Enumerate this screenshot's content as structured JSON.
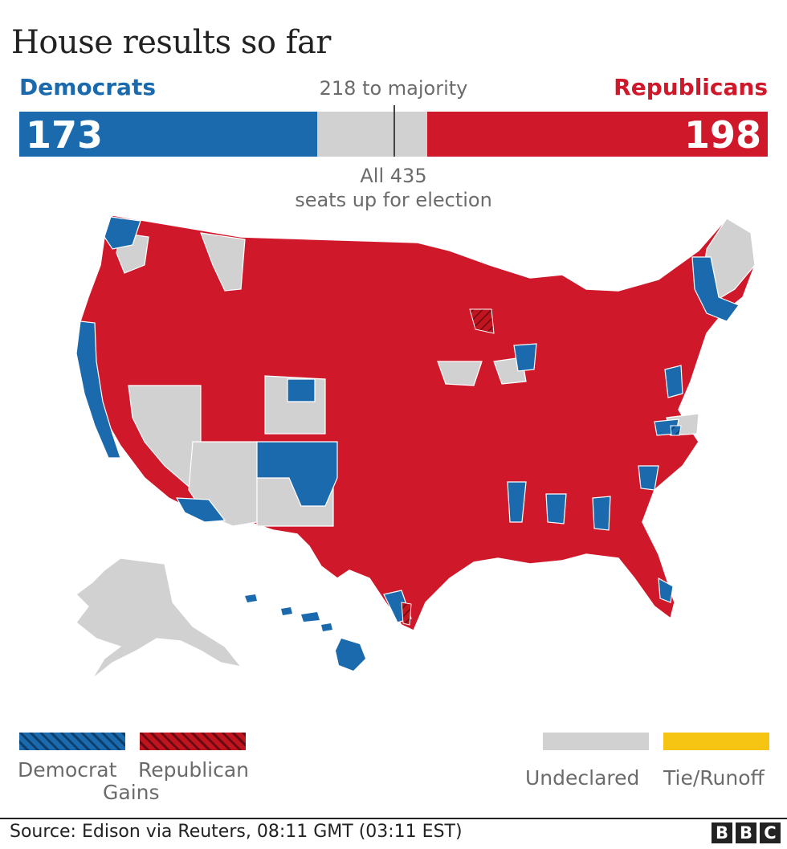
{
  "title": "House results so far",
  "democrats": {
    "label": "Democrats",
    "seats": "173",
    "color": "#1a6aad"
  },
  "republicans": {
    "label": "Republicans",
    "seats": "198",
    "color": "#d0182b"
  },
  "majority": {
    "label": "218 to majority",
    "value": 218
  },
  "total_seats": 435,
  "seats_note": {
    "line1": "All 435",
    "line2": "seats up for election"
  },
  "legend": {
    "dem_gain_line1": "Democrat",
    "rep_gain_line1": "Republican",
    "gains": "Gains",
    "undeclared": "Undeclared",
    "tie_runoff": "Tie/Runoff",
    "colors": {
      "dem_gain": "#1a6aad",
      "rep_gain": "#a4121d",
      "undeclared": "#d1d1d1",
      "tie_runoff": "#f6c413"
    }
  },
  "map_colors": {
    "democrat": "#1a6aad",
    "republican": "#d0182b",
    "undeclared": "#d1d1d1"
  },
  "source": "Source: Edison via Reuters, 08:11 GMT (03:11 EST)",
  "brand": [
    "B",
    "B",
    "C"
  ]
}
